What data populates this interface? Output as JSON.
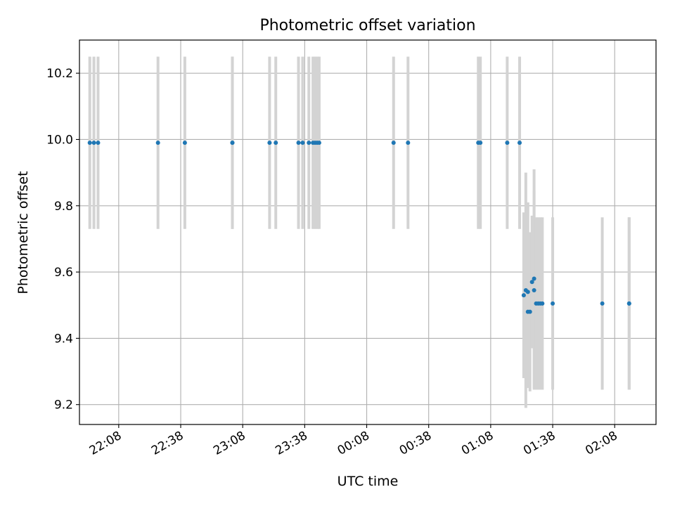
{
  "chart_data": {
    "type": "scatter",
    "title": "Photometric offset variation",
    "xlabel": "UTC time",
    "ylabel": "Photometric offset",
    "x_tick_labels": [
      "22:08",
      "22:38",
      "23:08",
      "23:38",
      "00:08",
      "00:38",
      "01:08",
      "01:38",
      "02:08"
    ],
    "x_ticks": [
      "22:08",
      "22:38",
      "23:08",
      "23:38",
      "00:08",
      "00:38",
      "01:08",
      "01:38",
      "02:08"
    ],
    "y_ticks": [
      9.2,
      9.4,
      9.6,
      9.8,
      10.0,
      10.2
    ],
    "y_tick_labels": [
      "9.2",
      "9.4",
      "9.6",
      "9.8",
      "10.0",
      "10.2"
    ],
    "xlim": [
      "21:49",
      "02:28"
    ],
    "ylim": [
      9.14,
      10.3
    ],
    "grid": true,
    "colors": {
      "point": "#1f77b4",
      "errorbar": "#d3d3d3",
      "grid": "#b0b0b0"
    },
    "points": [
      {
        "time": "21:54",
        "y": 9.99,
        "err": 0.26
      },
      {
        "time": "21:56",
        "y": 9.99,
        "err": 0.26
      },
      {
        "time": "21:58",
        "y": 9.99,
        "err": 0.26
      },
      {
        "time": "22:27",
        "y": 9.99,
        "err": 0.26
      },
      {
        "time": "22:40",
        "y": 9.99,
        "err": 0.26
      },
      {
        "time": "23:03",
        "y": 9.99,
        "err": 0.26
      },
      {
        "time": "23:03",
        "y": 9.99,
        "err": 0.26
      },
      {
        "time": "23:21",
        "y": 9.99,
        "err": 0.26
      },
      {
        "time": "23:24",
        "y": 9.99,
        "err": 0.26
      },
      {
        "time": "23:35",
        "y": 9.99,
        "err": 0.26
      },
      {
        "time": "23:37",
        "y": 9.99,
        "err": 0.26
      },
      {
        "time": "23:40",
        "y": 9.99,
        "err": 0.26
      },
      {
        "time": "23:42",
        "y": 9.99,
        "err": 0.26
      },
      {
        "time": "23:43",
        "y": 9.99,
        "err": 0.26
      },
      {
        "time": "23:44",
        "y": 9.99,
        "err": 0.26
      },
      {
        "time": "23:45",
        "y": 9.99,
        "err": 0.26
      },
      {
        "time": "00:21",
        "y": 9.99,
        "err": 0.26
      },
      {
        "time": "00:28",
        "y": 9.99,
        "err": 0.26
      },
      {
        "time": "01:02",
        "y": 9.99,
        "err": 0.26
      },
      {
        "time": "01:03",
        "y": 9.99,
        "err": 0.26
      },
      {
        "time": "01:16",
        "y": 9.99,
        "err": 0.26
      },
      {
        "time": "01:22",
        "y": 9.99,
        "err": 0.26
      },
      {
        "time": "01:24",
        "y": 9.53,
        "err": 0.25
      },
      {
        "time": "01:25",
        "y": 9.545,
        "err": 0.355
      },
      {
        "time": "01:26",
        "y": 9.54,
        "err": 0.27
      },
      {
        "time": "01:26",
        "y": 9.48,
        "err": 0.23
      },
      {
        "time": "01:27",
        "y": 9.48,
        "err": 0.24
      },
      {
        "time": "01:28",
        "y": 9.57,
        "err": 0.2
      },
      {
        "time": "01:29",
        "y": 9.58,
        "err": 0.33
      },
      {
        "time": "01:29",
        "y": 9.545,
        "err": 0.3
      },
      {
        "time": "01:30",
        "y": 9.505,
        "err": 0.26
      },
      {
        "time": "01:31",
        "y": 9.505,
        "err": 0.26
      },
      {
        "time": "01:32",
        "y": 9.505,
        "err": 0.26
      },
      {
        "time": "01:33",
        "y": 9.505,
        "err": 0.26
      },
      {
        "time": "01:38",
        "y": 9.505,
        "err": 0.26
      },
      {
        "time": "02:02",
        "y": 9.505,
        "err": 0.26
      },
      {
        "time": "02:15",
        "y": 9.505,
        "err": 0.26
      },
      {
        "time": "02:15",
        "y": 9.505,
        "err": 0.26
      }
    ]
  }
}
